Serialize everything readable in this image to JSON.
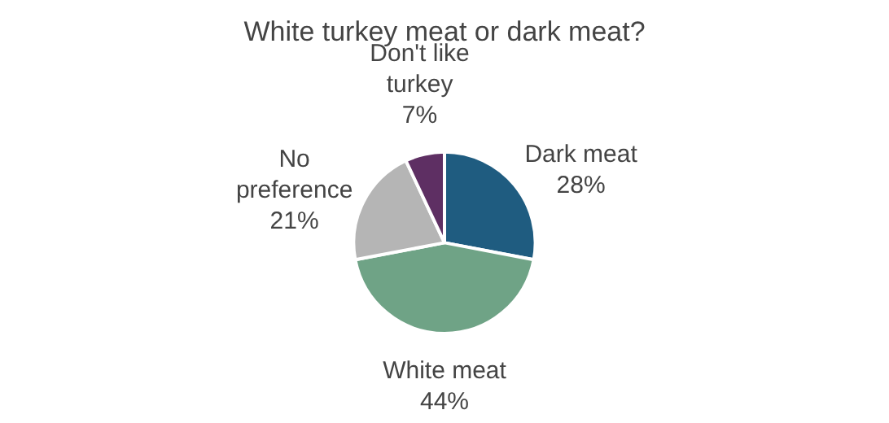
{
  "chart_data": {
    "type": "pie",
    "title": "White turkey meat or dark meat?",
    "categories": [
      "Dark meat",
      "White meat",
      "No preference",
      "Don't like turkey"
    ],
    "values": [
      28,
      44,
      21,
      7
    ],
    "colors": [
      "#1f5c80",
      "#6fa386",
      "#b5b5b5",
      "#5e2f63"
    ],
    "value_labels": [
      "28%",
      "44%",
      "21%",
      "7%"
    ],
    "legend": false
  }
}
